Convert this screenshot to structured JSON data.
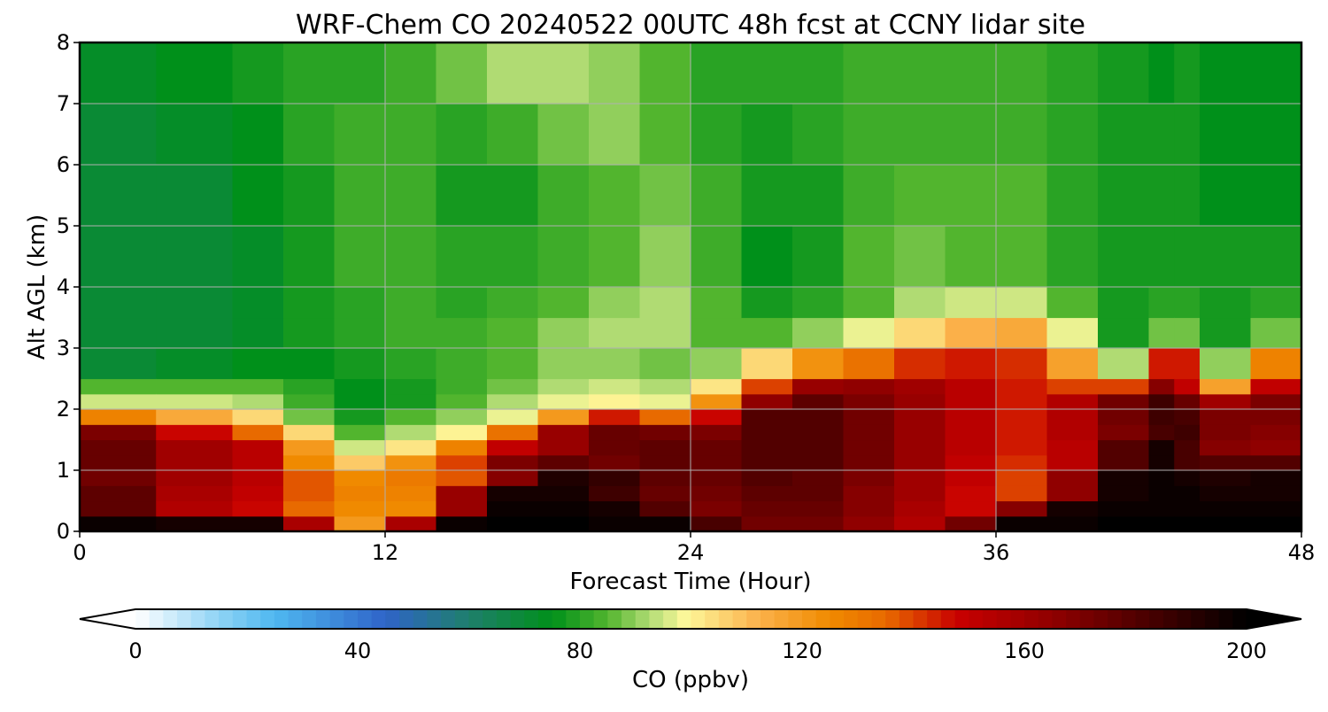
{
  "chart_data": {
    "type": "heatmap",
    "title": "WRF-Chem CO  20240522 00UTC 48h fcst at CCNY lidar site",
    "xlabel": "Forecast Time (Hour)",
    "ylabel": "Alt AGL (km)",
    "xlim": [
      0,
      48
    ],
    "ylim": [
      0,
      8
    ],
    "xticks": [
      0,
      12,
      24,
      36,
      48
    ],
    "yticks": [
      0,
      1,
      2,
      3,
      4,
      5,
      6,
      7,
      8
    ],
    "grid": true,
    "colorbar": {
      "label": "CO  (ppbv)",
      "min": 0,
      "max": 200,
      "ticks": [
        0,
        40,
        80,
        120,
        160,
        200
      ],
      "extend": "both",
      "orientation": "horizontal",
      "colors": [
        {
          "value": 0,
          "color": "#ffffff"
        },
        {
          "value": 15,
          "color": "#8fd3f5"
        },
        {
          "value": 25,
          "color": "#4fb8f0"
        },
        {
          "value": 45,
          "color": "#2f64c8"
        },
        {
          "value": 60,
          "color": "#1f7f6c"
        },
        {
          "value": 75,
          "color": "#00901a"
        },
        {
          "value": 85,
          "color": "#52b52e"
        },
        {
          "value": 93,
          "color": "#b6de78"
        },
        {
          "value": 99,
          "color": "#fdf89a"
        },
        {
          "value": 112,
          "color": "#fbb24c"
        },
        {
          "value": 125,
          "color": "#f08a00"
        },
        {
          "value": 135,
          "color": "#e86a00"
        },
        {
          "value": 148,
          "color": "#c80000"
        },
        {
          "value": 165,
          "color": "#900000"
        },
        {
          "value": 182,
          "color": "#4a0000"
        },
        {
          "value": 200,
          "color": "#000000"
        }
      ]
    },
    "x": [
      0,
      3,
      6,
      8,
      10,
      12,
      14,
      16,
      18,
      20,
      22,
      24,
      26,
      28,
      30,
      32,
      34,
      36,
      38,
      40,
      42,
      43,
      44,
      46,
      48
    ],
    "y": [
      0,
      0.25,
      0.5,
      0.75,
      1,
      1.25,
      1.5,
      1.75,
      2,
      2.25,
      2.5,
      3,
      3.5,
      4,
      5,
      6,
      7,
      8
    ],
    "ppbl_km": [
      2.0,
      2.0,
      1.95,
      1.9,
      1.15,
      1.3,
      1.45,
      1.65,
      1.85,
      2.05,
      2.1,
      2.0,
      2.5,
      2.9,
      3.0,
      3.2,
      3.4,
      3.5,
      3.5,
      2.6,
      2.5,
      3.2,
      2.4,
      2.5,
      3.2
    ],
    "dark_top_km": [
      0.85,
      0.25,
      0.2,
      0.15,
      0.05,
      0.1,
      0.25,
      0.8,
      1.25,
      0.9,
      0.45,
      0.25,
      0.1,
      0.05,
      0.0,
      0.0,
      0.1,
      0.3,
      0.6,
      0.9,
      1.6,
      2.6,
      0.9,
      1.3,
      1.1
    ],
    "boundary_core": [
      180,
      155,
      150,
      140,
      120,
      118,
      125,
      140,
      150,
      160,
      175,
      165,
      170,
      175,
      168,
      160,
      150,
      140,
      135,
      160,
      170,
      195,
      165,
      160,
      165
    ],
    "free_troposphere": [
      [
        69,
        71,
        74,
        76,
        74,
        76,
        80,
        83,
        86,
        90,
        87,
        82,
        74,
        77,
        81,
        84,
        86,
        87,
        83,
        78,
        76,
        78,
        75,
        77,
        82
      ],
      [
        69,
        70,
        72,
        75,
        77,
        80,
        82,
        86,
        89,
        92,
        94,
        90,
        80,
        77,
        82,
        86,
        88,
        88,
        84,
        79,
        76,
        78,
        76,
        77,
        80
      ],
      [
        69,
        70,
        72,
        75,
        79,
        84,
        81,
        78,
        82,
        86,
        90,
        92,
        78,
        75,
        82,
        86,
        87,
        86,
        83,
        78,
        76,
        79,
        77,
        77,
        79
      ],
      [
        70,
        70,
        72,
        75,
        80,
        86,
        80,
        76,
        79,
        82,
        86,
        88,
        76,
        75,
        82,
        86,
        86,
        85,
        84,
        78,
        76,
        78,
        77,
        76,
        77
      ],
      [
        70,
        70,
        72,
        76,
        82,
        84,
        80,
        76,
        80,
        84,
        88,
        84,
        78,
        76,
        81,
        84,
        84,
        84,
        82,
        77,
        76,
        77,
        76,
        75,
        76
      ],
      [
        71,
        72,
        74,
        77,
        82,
        82,
        82,
        86,
        92,
        96,
        90,
        80,
        80,
        78,
        80,
        82,
        82,
        83,
        80,
        77,
        76,
        76,
        76,
        75,
        76
      ],
      [
        72,
        74,
        80,
        78,
        78,
        82,
        88,
        96,
        94,
        92,
        86,
        82,
        80,
        82,
        82,
        82,
        82,
        84,
        82,
        78,
        76,
        76,
        77,
        76,
        76
      ]
    ],
    "free_troposphere_alt_km": [
      2.5,
      3,
      4,
      5,
      6,
      7,
      8
    ]
  }
}
